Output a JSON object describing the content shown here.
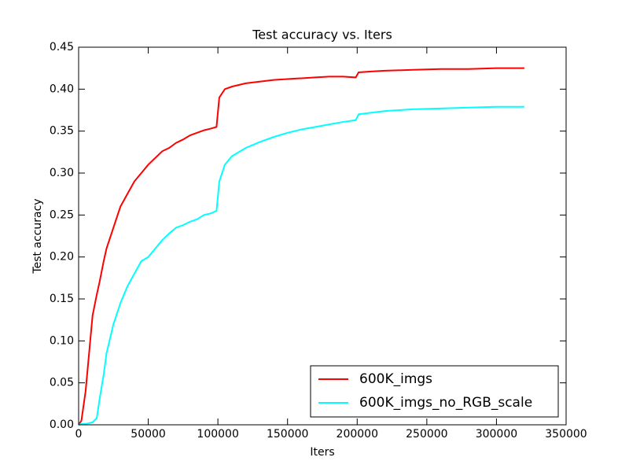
{
  "chart_data": {
    "type": "line",
    "title": "Test accuracy  vs. Iters",
    "xlabel": "Iters",
    "ylabel": "Test accuracy",
    "x": [
      0,
      2000,
      5000,
      10000,
      13000,
      15000,
      18000,
      20000,
      25000,
      30000,
      35000,
      40000,
      45000,
      50000,
      55000,
      60000,
      65000,
      70000,
      75000,
      80000,
      85000,
      90000,
      95000,
      99000,
      101000,
      105000,
      110000,
      120000,
      130000,
      140000,
      150000,
      160000,
      170000,
      180000,
      190000,
      199000,
      201000,
      210000,
      220000,
      240000,
      260000,
      280000,
      300000,
      320000
    ],
    "series": [
      {
        "name": "600K_imgs",
        "color": "#ff0000",
        "values": [
          0,
          0.005,
          0.04,
          0.13,
          0.155,
          0.17,
          0.195,
          0.21,
          0.235,
          0.26,
          0.275,
          0.29,
          0.3,
          0.31,
          0.318,
          0.326,
          0.33,
          0.336,
          0.34,
          0.345,
          0.348,
          0.351,
          0.353,
          0.355,
          0.39,
          0.4,
          0.403,
          0.407,
          0.409,
          0.411,
          0.412,
          0.413,
          0.414,
          0.415,
          0.415,
          0.414,
          0.42,
          0.421,
          0.422,
          0.423,
          0.424,
          0.424,
          0.425,
          0.425
        ]
      },
      {
        "name": "600K_imgs_no_RGB_scale",
        "color": "#00ffff",
        "values": [
          0,
          0.001,
          0.001,
          0.003,
          0.008,
          0.03,
          0.06,
          0.085,
          0.12,
          0.145,
          0.165,
          0.18,
          0.195,
          0.2,
          0.21,
          0.22,
          0.228,
          0.235,
          0.238,
          0.242,
          0.245,
          0.25,
          0.252,
          0.255,
          0.29,
          0.31,
          0.32,
          0.33,
          0.337,
          0.343,
          0.348,
          0.352,
          0.355,
          0.358,
          0.361,
          0.363,
          0.37,
          0.372,
          0.374,
          0.376,
          0.377,
          0.378,
          0.379,
          0.379
        ]
      }
    ],
    "xlim": [
      0,
      350000
    ],
    "xticks": [
      0,
      50000,
      100000,
      150000,
      200000,
      250000,
      300000,
      350000
    ],
    "ylim": [
      0,
      0.45
    ],
    "yticks": [
      {
        "value": 0,
        "label": "0.00"
      },
      {
        "value": 0.05,
        "label": "0.05"
      },
      {
        "value": 0.1,
        "label": "0.10"
      },
      {
        "value": 0.15,
        "label": "0.15"
      },
      {
        "value": 0.2,
        "label": "0.20"
      },
      {
        "value": 0.25,
        "label": "0.25"
      },
      {
        "value": 0.3,
        "label": "0.30"
      },
      {
        "value": 0.35,
        "label": "0.35"
      },
      {
        "value": 0.4,
        "label": "0.40"
      },
      {
        "value": 0.45,
        "label": "0.45"
      }
    ],
    "legend": "lower right",
    "grid": false
  }
}
